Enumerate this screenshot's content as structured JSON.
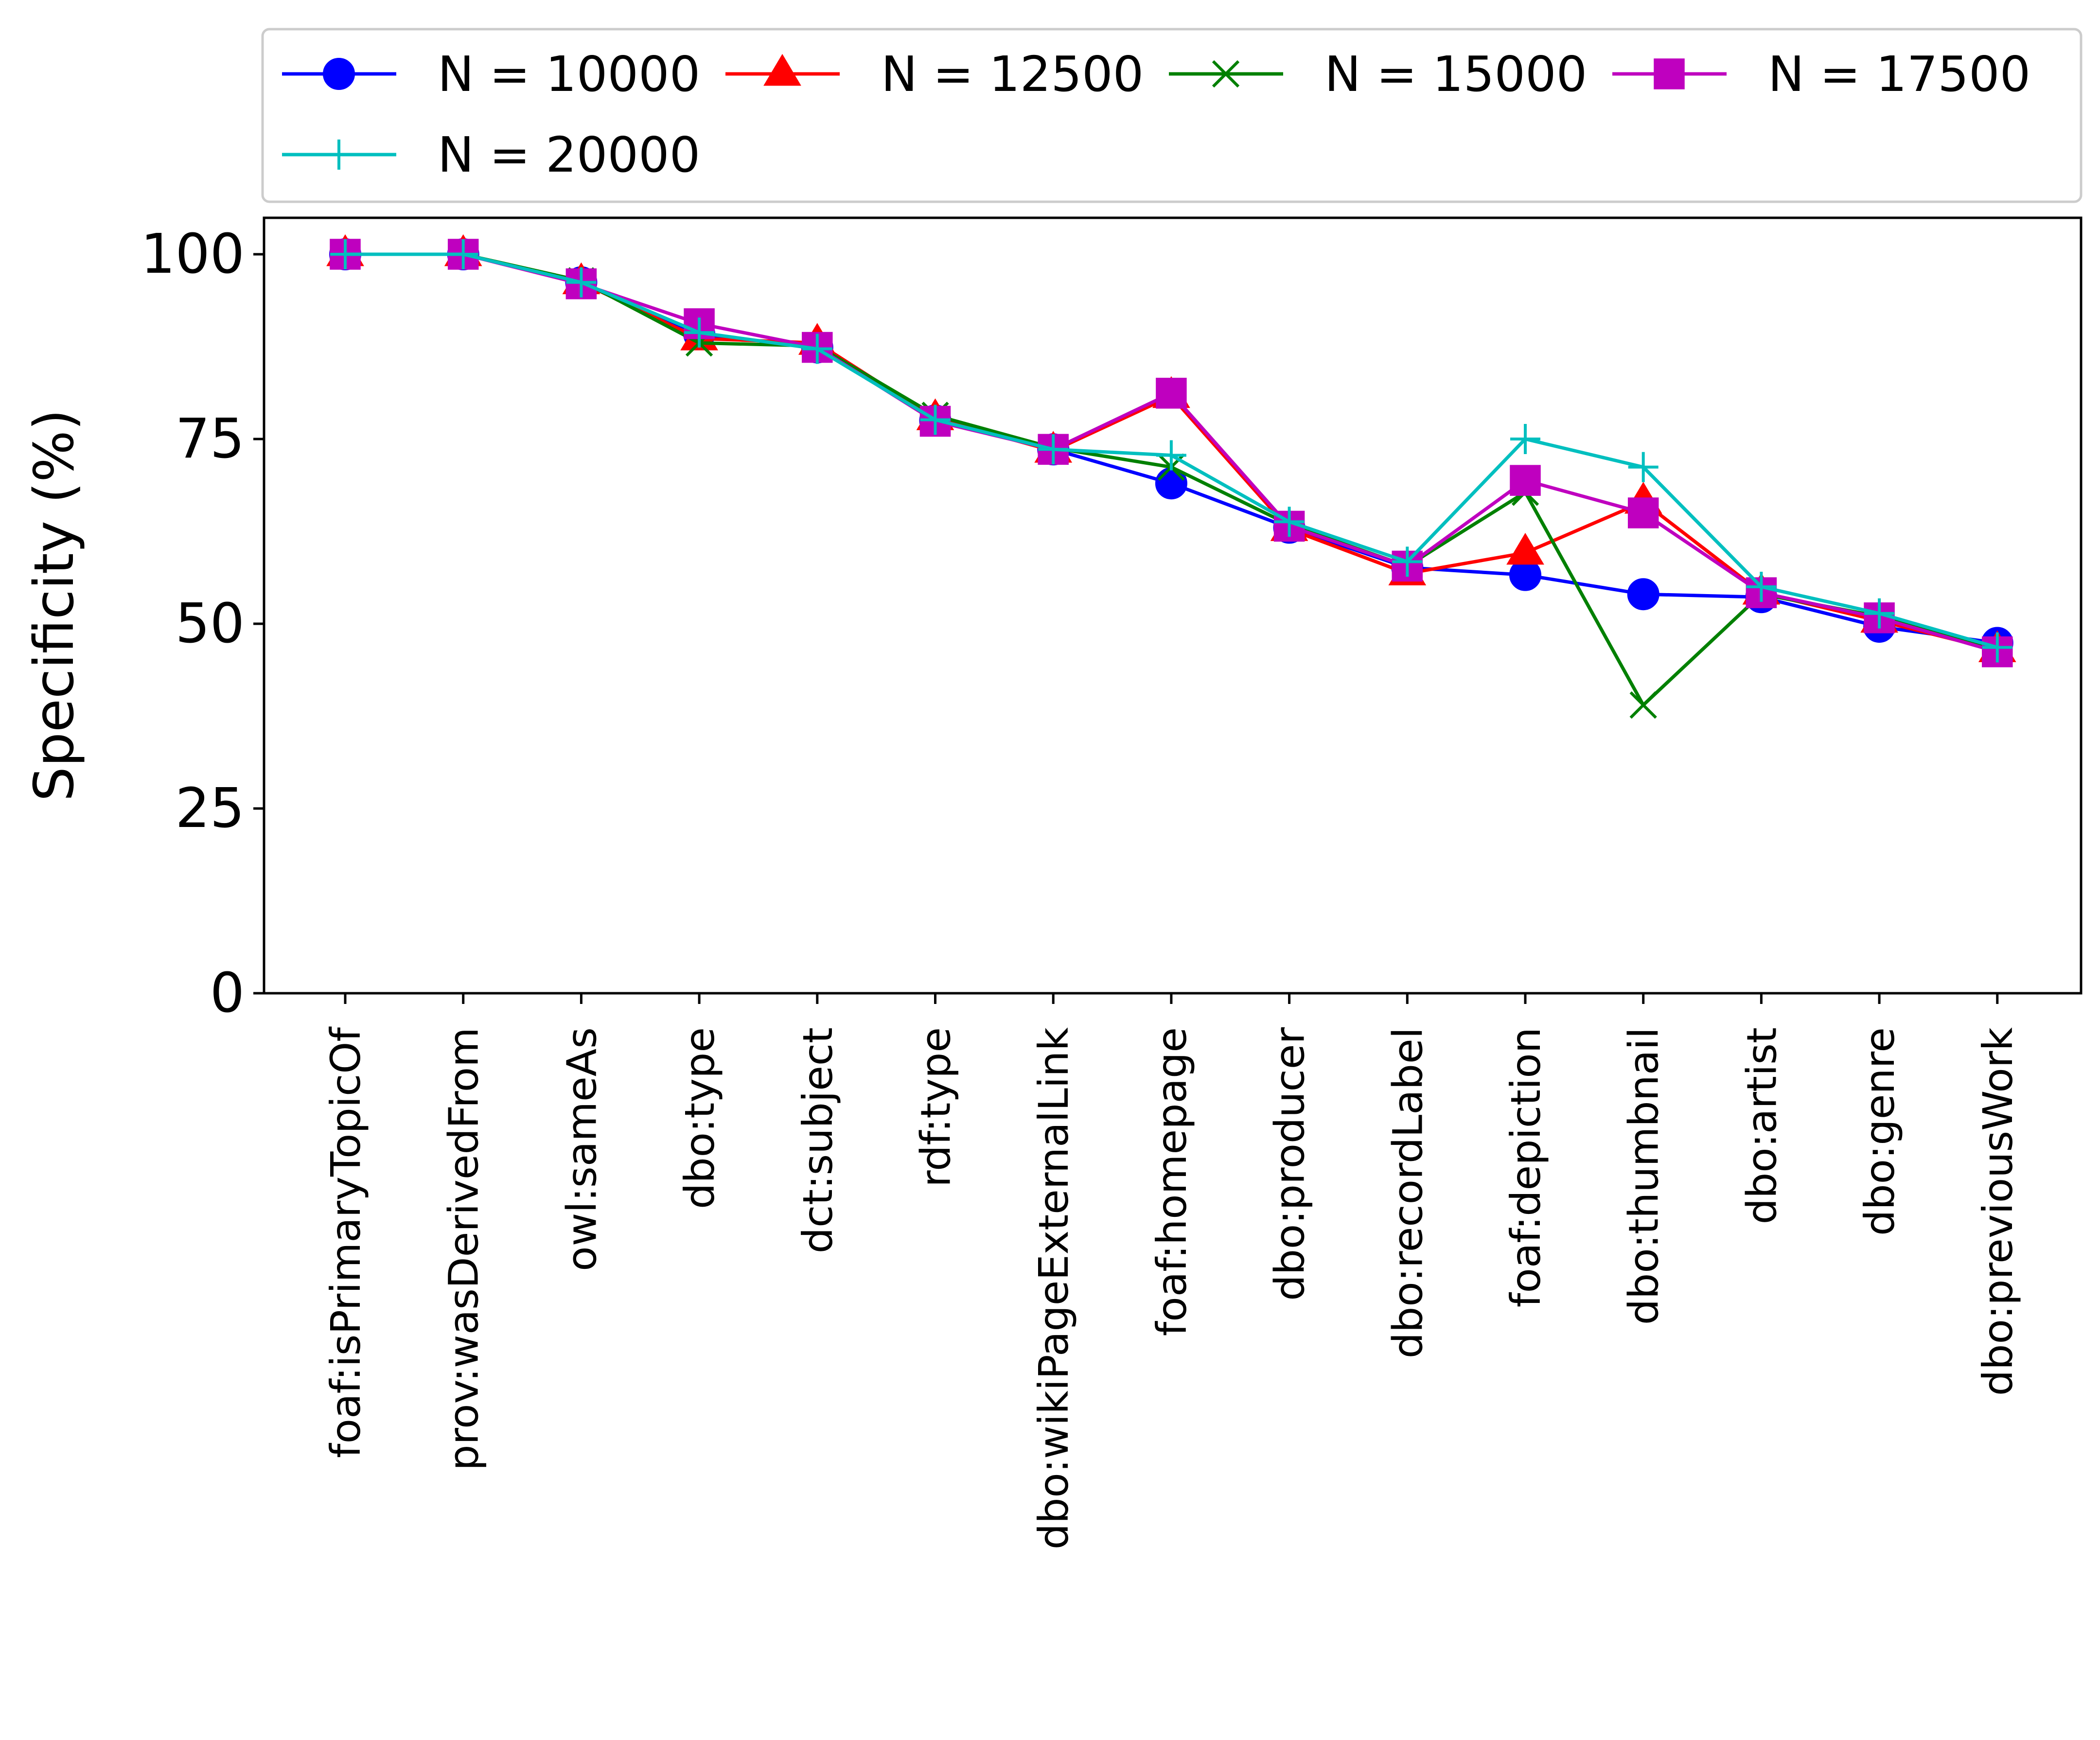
{
  "chart_data": {
    "type": "line",
    "ylabel": "Specificity (%)",
    "xlabel": "",
    "ylim": [
      0,
      105
    ],
    "yticks": [
      0,
      25,
      50,
      75,
      100
    ],
    "grid": false,
    "legend_position": "top, above plot",
    "categories": [
      "foaf:isPrimaryTopicOf",
      "prov:wasDerivedFrom",
      "owl:sameAs",
      "dbo:type",
      "dct:subject",
      "rdf:type",
      "dbo:wikiPageExternalLink",
      "foaf:homepage",
      "dbo:producer",
      "dbo:recordLabel",
      "foaf:depiction",
      "dbo:thumbnail",
      "dbo:artist",
      "dbo:genre",
      "dbo:previousWork"
    ],
    "series": [
      {
        "name": "N = 10000",
        "color": "#0000ff",
        "marker": "circle",
        "values": [
          100,
          100,
          96.2,
          89.2,
          87.4,
          77.5,
          73.6,
          69.0,
          63.0,
          57.6,
          56.6,
          54.0,
          53.6,
          49.6,
          47.4
        ]
      },
      {
        "name": "N = 12500",
        "color": "#ff0000",
        "marker": "triangle",
        "values": [
          100,
          100,
          96.2,
          88.6,
          88.0,
          77.8,
          73.4,
          80.8,
          62.8,
          56.8,
          59.6,
          66.5,
          54.2,
          50.4,
          46.4
        ]
      },
      {
        "name": "N = 15000",
        "color": "#008000",
        "marker": "x",
        "values": [
          100,
          100,
          96.4,
          88.0,
          87.6,
          78.2,
          73.8,
          71.2,
          63.4,
          57.8,
          67.8,
          39.0,
          54.0,
          51.0,
          46.4
        ]
      },
      {
        "name": "N = 17500",
        "color": "#bf00bf",
        "marker": "square",
        "values": [
          100,
          100,
          96.0,
          90.6,
          87.4,
          77.4,
          73.6,
          81.2,
          63.2,
          57.8,
          69.4,
          65.0,
          54.2,
          50.8,
          46.2
        ]
      },
      {
        "name": "N = 20000",
        "color": "#00bfbf",
        "marker": "plus",
        "values": [
          100,
          100,
          96.2,
          89.4,
          87.2,
          77.6,
          73.6,
          72.8,
          63.8,
          58.4,
          75.0,
          71.2,
          55.0,
          51.4,
          46.8
        ]
      }
    ]
  }
}
